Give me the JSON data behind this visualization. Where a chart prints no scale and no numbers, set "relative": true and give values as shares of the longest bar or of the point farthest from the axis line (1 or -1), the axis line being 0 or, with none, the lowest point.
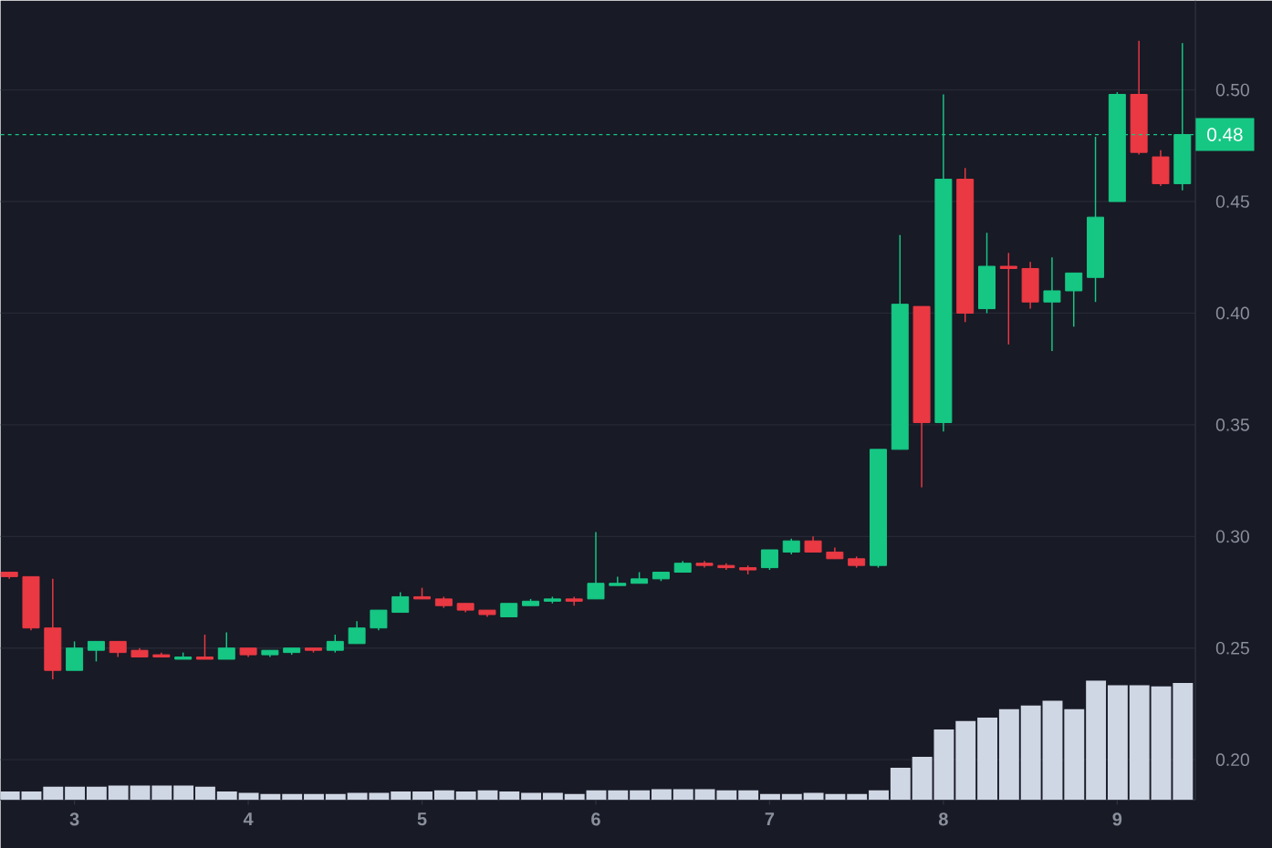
{
  "chart_data": [
    {
      "type": "candlestick",
      "x": [
        2.625,
        2.75,
        2.875,
        3,
        3.125,
        3.25,
        3.375,
        3.5,
        3.625,
        3.75,
        3.875,
        4,
        4.125,
        4.25,
        4.375,
        4.5,
        4.625,
        4.75,
        4.875,
        5,
        5.125,
        5.25,
        5.375,
        5.5,
        5.625,
        5.75,
        5.875,
        6,
        6.125,
        6.25,
        6.375,
        6.5,
        6.625,
        6.75,
        6.875,
        7,
        7.125,
        7.25,
        7.375,
        7.5,
        7.625,
        7.75,
        7.875,
        8,
        8.125,
        8.25,
        8.375,
        8.5,
        8.625,
        8.75,
        8.875,
        9,
        9.125,
        9.25,
        9.375
      ],
      "ohlc": [
        [
          0.284,
          0.284,
          0.281,
          0.282
        ],
        [
          0.282,
          0.282,
          0.258,
          0.259
        ],
        [
          0.259,
          0.281,
          0.236,
          0.24
        ],
        [
          0.24,
          0.253,
          0.24,
          0.25
        ],
        [
          0.249,
          0.253,
          0.244,
          0.253
        ],
        [
          0.253,
          0.253,
          0.246,
          0.248
        ],
        [
          0.249,
          0.25,
          0.246,
          0.246
        ],
        [
          0.247,
          0.248,
          0.246,
          0.246
        ],
        [
          0.245,
          0.248,
          0.245,
          0.246
        ],
        [
          0.246,
          0.256,
          0.245,
          0.245
        ],
        [
          0.245,
          0.257,
          0.245,
          0.25
        ],
        [
          0.25,
          0.25,
          0.246,
          0.247
        ],
        [
          0.247,
          0.249,
          0.246,
          0.249
        ],
        [
          0.248,
          0.25,
          0.247,
          0.25
        ],
        [
          0.25,
          0.25,
          0.248,
          0.249
        ],
        [
          0.249,
          0.256,
          0.248,
          0.253
        ],
        [
          0.252,
          0.262,
          0.252,
          0.259
        ],
        [
          0.259,
          0.267,
          0.258,
          0.267
        ],
        [
          0.266,
          0.275,
          0.266,
          0.273
        ],
        [
          0.273,
          0.277,
          0.272,
          0.272
        ],
        [
          0.272,
          0.273,
          0.268,
          0.269
        ],
        [
          0.27,
          0.27,
          0.266,
          0.267
        ],
        [
          0.267,
          0.267,
          0.264,
          0.265
        ],
        [
          0.264,
          0.27,
          0.264,
          0.27
        ],
        [
          0.269,
          0.272,
          0.269,
          0.271
        ],
        [
          0.271,
          0.273,
          0.27,
          0.272
        ],
        [
          0.272,
          0.273,
          0.269,
          0.271
        ],
        [
          0.272,
          0.302,
          0.272,
          0.279
        ],
        [
          0.278,
          0.282,
          0.278,
          0.279
        ],
        [
          0.279,
          0.284,
          0.279,
          0.281
        ],
        [
          0.281,
          0.284,
          0.28,
          0.284
        ],
        [
          0.284,
          0.289,
          0.284,
          0.288
        ],
        [
          0.288,
          0.289,
          0.286,
          0.287
        ],
        [
          0.287,
          0.288,
          0.285,
          0.286
        ],
        [
          0.286,
          0.287,
          0.283,
          0.285
        ],
        [
          0.286,
          0.294,
          0.285,
          0.294
        ],
        [
          0.293,
          0.299,
          0.292,
          0.298
        ],
        [
          0.298,
          0.3,
          0.293,
          0.293
        ],
        [
          0.293,
          0.295,
          0.29,
          0.29
        ],
        [
          0.29,
          0.291,
          0.286,
          0.287
        ],
        [
          0.287,
          0.339,
          0.286,
          0.339
        ],
        [
          0.339,
          0.435,
          0.339,
          0.404
        ],
        [
          0.403,
          0.403,
          0.322,
          0.351
        ],
        [
          0.351,
          0.498,
          0.347,
          0.46
        ],
        [
          0.46,
          0.465,
          0.396,
          0.4
        ],
        [
          0.402,
          0.436,
          0.4,
          0.421
        ],
        [
          0.421,
          0.427,
          0.386,
          0.42
        ],
        [
          0.42,
          0.423,
          0.402,
          0.405
        ],
        [
          0.405,
          0.425,
          0.383,
          0.41
        ],
        [
          0.41,
          0.418,
          0.394,
          0.418
        ],
        [
          0.416,
          0.479,
          0.405,
          0.443
        ],
        [
          0.45,
          0.499,
          0.45,
          0.498
        ],
        [
          0.498,
          0.522,
          0.471,
          0.472
        ],
        [
          0.47,
          0.473,
          0.457,
          0.458
        ],
        [
          0.458,
          0.521,
          0.455,
          0.48
        ]
      ],
      "xlim": [
        2.575,
        9.45
      ],
      "ylim": [
        0.182,
        0.54
      ],
      "xticks": [
        3,
        4,
        5,
        6,
        7,
        8,
        9
      ],
      "yticks": [
        {
          "value": 0.2,
          "label": "0.20"
        },
        {
          "value": 0.25,
          "label": "0.25"
        },
        {
          "value": 0.3,
          "label": "0.30"
        },
        {
          "value": 0.35,
          "label": "0.35"
        },
        {
          "value": 0.4,
          "label": "0.40"
        },
        {
          "value": 0.45,
          "label": "0.45"
        },
        {
          "value": 0.5,
          "label": "0.50"
        }
      ],
      "grid": "y",
      "ref_lines": [
        {
          "axis": "y",
          "value": 0.48,
          "label": "0.48",
          "color": "#16c784",
          "line_style": "dashed"
        }
      ]
    },
    {
      "type": "bar",
      "relative": true,
      "color": "#cfd6e4",
      "categories": [
        null,
        null,
        null,
        null,
        null,
        null,
        null,
        null,
        null,
        null,
        null,
        null,
        null,
        null,
        null,
        null,
        null,
        null,
        null,
        null,
        null,
        null,
        null,
        null,
        null,
        null,
        null,
        null,
        null,
        null,
        null,
        null,
        null,
        null,
        null,
        null,
        null,
        null,
        null,
        null,
        null,
        null,
        null,
        null,
        null,
        null,
        null,
        null,
        null,
        null,
        null,
        null,
        null,
        null,
        null
      ],
      "values": [
        0.07,
        0.07,
        0.11,
        0.11,
        0.11,
        0.12,
        0.12,
        0.12,
        0.12,
        0.11,
        0.07,
        0.06,
        0.05,
        0.05,
        0.05,
        0.05,
        0.06,
        0.06,
        0.07,
        0.07,
        0.08,
        0.07,
        0.08,
        0.07,
        0.06,
        0.06,
        0.05,
        0.08,
        0.08,
        0.08,
        0.09,
        0.09,
        0.09,
        0.08,
        0.08,
        0.05,
        0.05,
        0.06,
        0.05,
        0.05,
        0.08,
        0.27,
        0.36,
        0.59,
        0.66,
        0.69,
        0.76,
        0.79,
        0.83,
        0.76,
        1,
        0.96,
        0.96,
        0.95,
        0.98
      ]
    }
  ]
}
